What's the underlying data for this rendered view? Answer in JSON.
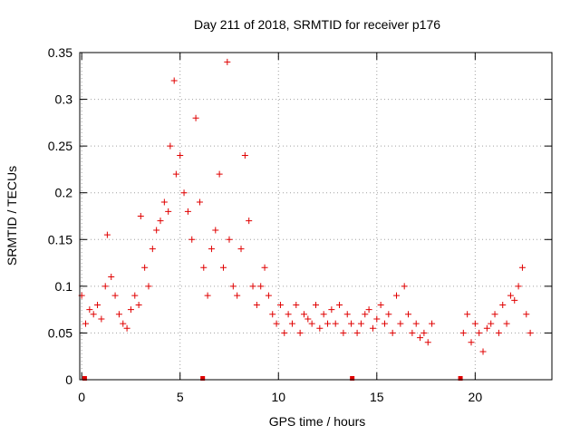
{
  "chart_data": {
    "type": "scatter",
    "title": "Day 211 of 2018, SRMTID for receiver p176",
    "xlabel": "GPS time / hours",
    "ylabel": "SRMTID / TECUs",
    "xlim": [
      -0.1,
      23.9
    ],
    "ylim": [
      0,
      0.35
    ],
    "xticks": [
      0,
      5,
      10,
      15,
      20
    ],
    "yticks": [
      0,
      0.05,
      0.1,
      0.15,
      0.2,
      0.25,
      0.3,
      0.35
    ],
    "grid": true,
    "marker": "+",
    "color": "#e00000",
    "series": [
      {
        "name": "SRMTID",
        "x": [
          0.0,
          0.2,
          0.4,
          0.6,
          0.8,
          1.0,
          1.2,
          1.3,
          1.5,
          1.7,
          1.9,
          2.1,
          2.3,
          2.5,
          2.7,
          2.9,
          3.0,
          3.2,
          3.4,
          3.6,
          3.8,
          4.0,
          4.2,
          4.4,
          4.5,
          4.7,
          4.8,
          5.0,
          5.2,
          5.4,
          5.6,
          5.8,
          6.0,
          6.2,
          6.4,
          6.6,
          6.8,
          7.0,
          7.2,
          7.4,
          7.5,
          7.7,
          7.9,
          8.1,
          8.3,
          8.5,
          8.7,
          8.9,
          9.1,
          9.3,
          9.5,
          9.7,
          9.9,
          10.1,
          10.3,
          10.5,
          10.7,
          10.9,
          11.1,
          11.3,
          11.5,
          11.7,
          11.9,
          12.1,
          12.3,
          12.5,
          12.7,
          12.9,
          13.1,
          13.3,
          13.5,
          13.7,
          14.0,
          14.2,
          14.4,
          14.6,
          14.8,
          15.0,
          15.2,
          15.4,
          15.6,
          15.8,
          16.0,
          16.2,
          16.4,
          16.6,
          16.8,
          17.0,
          17.2,
          17.4,
          17.6,
          17.8,
          19.4,
          19.6,
          19.8,
          20.0,
          20.2,
          20.4,
          20.6,
          20.8,
          21.0,
          21.2,
          21.4,
          21.6,
          21.8,
          22.0,
          22.2,
          22.4,
          22.6,
          22.8
        ],
        "y": [
          0.09,
          0.06,
          0.075,
          0.07,
          0.08,
          0.065,
          0.1,
          0.155,
          0.11,
          0.09,
          0.07,
          0.06,
          0.055,
          0.075,
          0.09,
          0.08,
          0.175,
          0.12,
          0.1,
          0.14,
          0.16,
          0.17,
          0.19,
          0.18,
          0.25,
          0.32,
          0.22,
          0.24,
          0.2,
          0.18,
          0.15,
          0.28,
          0.19,
          0.12,
          0.09,
          0.14,
          0.16,
          0.22,
          0.12,
          0.34,
          0.15,
          0.1,
          0.09,
          0.14,
          0.24,
          0.17,
          0.1,
          0.08,
          0.1,
          0.12,
          0.09,
          0.07,
          0.06,
          0.08,
          0.05,
          0.07,
          0.06,
          0.08,
          0.05,
          0.07,
          0.065,
          0.06,
          0.08,
          0.055,
          0.07,
          0.06,
          0.075,
          0.06,
          0.08,
          0.05,
          0.07,
          0.06,
          0.05,
          0.06,
          0.07,
          0.075,
          0.055,
          0.065,
          0.08,
          0.06,
          0.07,
          0.05,
          0.09,
          0.06,
          0.1,
          0.07,
          0.05,
          0.06,
          0.045,
          0.05,
          0.04,
          0.06,
          0.05,
          0.07,
          0.04,
          0.06,
          0.05,
          0.03,
          0.055,
          0.06,
          0.07,
          0.05,
          0.08,
          0.06,
          0.09,
          0.085,
          0.1,
          0.12,
          0.07,
          0.05
        ]
      }
    ],
    "gap_markers_x": [
      0.15,
      6.15,
      13.75,
      19.25
    ]
  }
}
